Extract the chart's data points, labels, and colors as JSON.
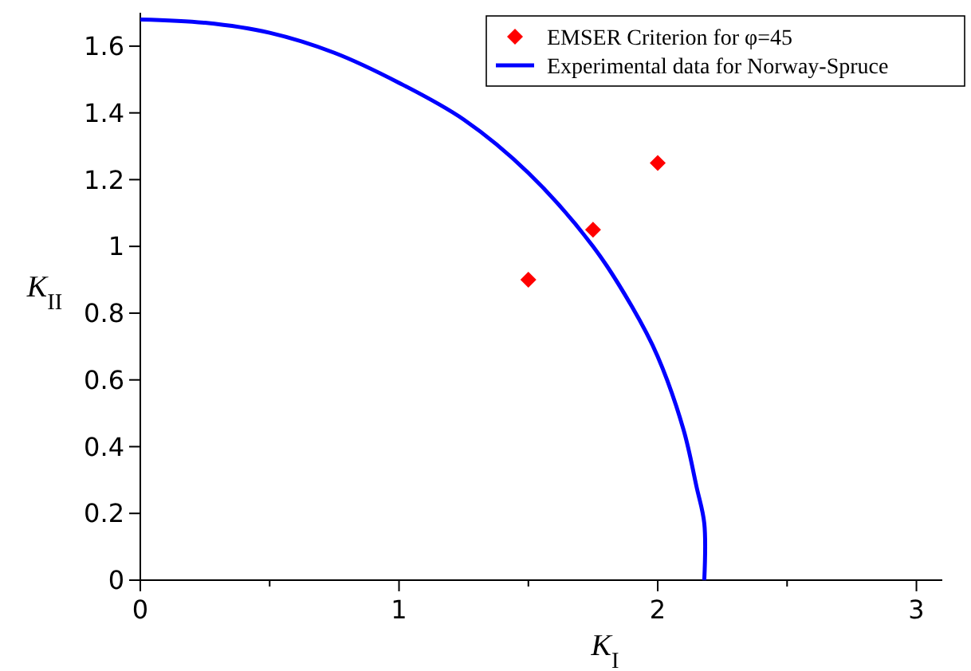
{
  "chart_data": {
    "type": "line",
    "xlabel": "K$_{I}$",
    "ylabel": "K$_{II}$",
    "xlim": [
      0,
      3.1
    ],
    "ylim": [
      0,
      1.7
    ],
    "xticks": [
      0,
      {
        "value": 0.5,
        "label": null
      },
      1,
      {
        "value": 1.5,
        "label": null
      },
      2,
      {
        "value": 2.5,
        "label": null
      },
      3
    ],
    "yticks": [
      0,
      0.2,
      0.4,
      0.6,
      0.8,
      1,
      1.2,
      1.4,
      1.6
    ],
    "legend": "top right",
    "grid": false,
    "series": [
      {
        "name": "EMSER Criterion for φ=45",
        "type": "scatter",
        "marker": "diamond",
        "color": "#ff0000",
        "x": [
          1.5,
          1.75,
          2
        ],
        "values": [
          0.9,
          1.05,
          1.25
        ]
      },
      {
        "name": "Experimental data for Norway-Spruce",
        "color": "#0000ff",
        "x": [
          0,
          0.25,
          0.5,
          0.75,
          1,
          1.25,
          1.5,
          1.75,
          1.9,
          2,
          2.1,
          2.15,
          2.18,
          2.18
        ],
        "values": [
          1.68,
          1.67,
          1.64,
          1.58,
          1.49,
          1.38,
          1.22,
          1.0,
          0.82,
          0.67,
          0.45,
          0.28,
          0.17,
          0
        ]
      }
    ]
  }
}
